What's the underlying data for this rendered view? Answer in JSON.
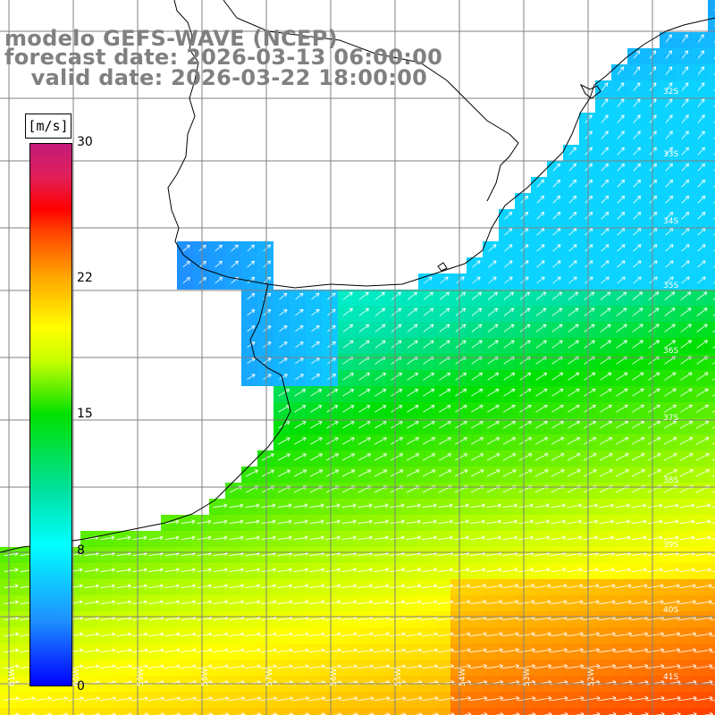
{
  "header": {
    "line1": "modelo GEFS-WAVE (NCEP)",
    "line2": "forecast date: 2026-03-13 06:00:00",
    "line3": "    valid date: 2026-03-22 18:00:00"
  },
  "colorbar": {
    "unit": "[m/s]",
    "ticks": [
      "30",
      "22",
      "15",
      "8",
      "0"
    ],
    "tick_values": [
      30,
      22,
      15,
      8,
      0
    ],
    "min": 0,
    "max": 30
  },
  "grid_labels": {
    "lat": [
      "32S",
      "33S",
      "34S",
      "35S",
      "36S",
      "37S",
      "38S",
      "39S",
      "40S",
      "41S"
    ],
    "lon": [
      "61W",
      "60W",
      "59W",
      "58W",
      "57W",
      "56W",
      "55W",
      "54W",
      "53W",
      "52W"
    ]
  },
  "colors": {
    "land": "#ffffff",
    "coast": "#000000",
    "grid": "#808080",
    "arrow": "#ffffff"
  }
}
